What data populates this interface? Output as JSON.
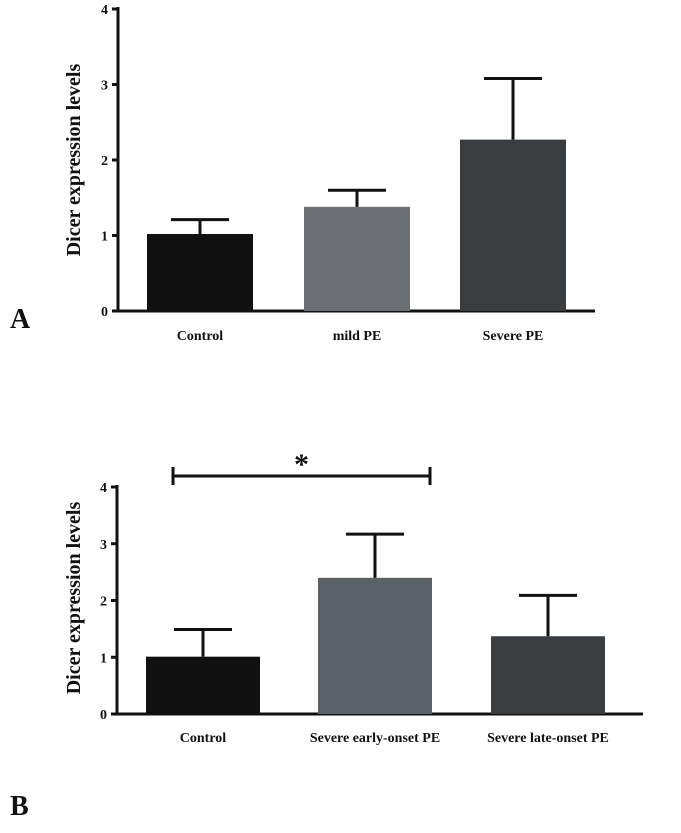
{
  "chart_data": [
    {
      "type": "bar",
      "panel_label": "A",
      "ylabel": "Dicer expression levels",
      "ylim": [
        0,
        4
      ],
      "yticks": [
        "0",
        "1",
        "2",
        "3",
        "4"
      ],
      "categories": [
        "Control",
        "mild PE",
        "Severe PE"
      ],
      "values": [
        1.02,
        1.38,
        2.27
      ],
      "errors": [
        0.19,
        0.22,
        0.81
      ],
      "colors": [
        "#111111",
        "#6b6e72",
        "#393d3f"
      ],
      "significance": []
    },
    {
      "type": "bar",
      "panel_label": "B",
      "ylabel": "Dicer expression levels",
      "ylim": [
        0,
        4
      ],
      "yticks": [
        "0",
        "1",
        "2",
        "3",
        "4"
      ],
      "categories": [
        "Control",
        "Severe early-onset PE",
        "Severe late-onset PE"
      ],
      "values": [
        1.01,
        2.4,
        1.37
      ],
      "errors": [
        0.48,
        0.77,
        0.72
      ],
      "colors": [
        "#111111",
        "#5b6267",
        "#393d3f"
      ],
      "significance": [
        {
          "from": 0,
          "to": 1,
          "label": "*"
        }
      ]
    }
  ]
}
